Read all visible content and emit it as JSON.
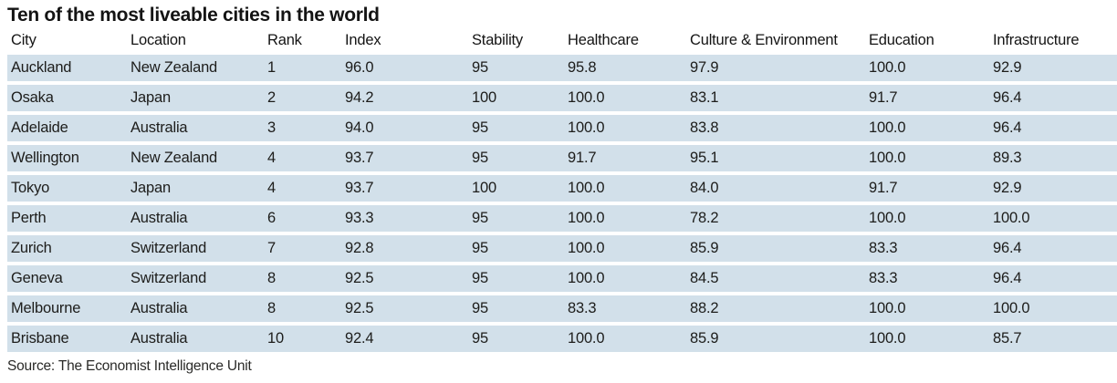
{
  "title": "Ten of the most liveable cities in the world",
  "source_note": "Source: The Economist Intelligence Unit",
  "colors": {
    "row_band": "#d2e0ea",
    "text": "#1d1d1b"
  },
  "chart_data": {
    "type": "table",
    "title": "Ten of the most liveable cities in the world",
    "columns": [
      "City",
      "Location",
      "Rank",
      "Index",
      "Stability",
      "Healthcare",
      "Culture & Environment",
      "Education",
      "Infrastructure"
    ],
    "rows": [
      [
        "Auckland",
        "New Zealand",
        "1",
        "96.0",
        "95",
        "95.8",
        "97.9",
        "100.0",
        "92.9"
      ],
      [
        "Osaka",
        "Japan",
        "2",
        "94.2",
        "100",
        "100.0",
        "83.1",
        "91.7",
        "96.4"
      ],
      [
        "Adelaide",
        "Australia",
        "3",
        "94.0",
        "95",
        "100.0",
        "83.8",
        "100.0",
        "96.4"
      ],
      [
        "Wellington",
        "New Zealand",
        "4",
        "93.7",
        "95",
        "91.7",
        "95.1",
        "100.0",
        "89.3"
      ],
      [
        "Tokyo",
        "Japan",
        "4",
        "93.7",
        "100",
        "100.0",
        "84.0",
        "91.7",
        "92.9"
      ],
      [
        "Perth",
        "Australia",
        "6",
        "93.3",
        "95",
        "100.0",
        "78.2",
        "100.0",
        "100.0"
      ],
      [
        "Zurich",
        "Switzerland",
        "7",
        "92.8",
        "95",
        "100.0",
        "85.9",
        "83.3",
        "96.4"
      ],
      [
        "Geneva",
        "Switzerland",
        "8",
        "92.5",
        "95",
        "100.0",
        "84.5",
        "83.3",
        "96.4"
      ],
      [
        "Melbourne",
        "Australia",
        "8",
        "92.5",
        "95",
        "83.3",
        "88.2",
        "100.0",
        "100.0"
      ],
      [
        "Brisbane",
        "Australia",
        "10",
        "92.4",
        "95",
        "100.0",
        "85.9",
        "100.0",
        "85.7"
      ]
    ],
    "source": "Source: The Economist Intelligence Unit",
    "layout": "striped rows, all cells left-aligned, no grid lines"
  }
}
